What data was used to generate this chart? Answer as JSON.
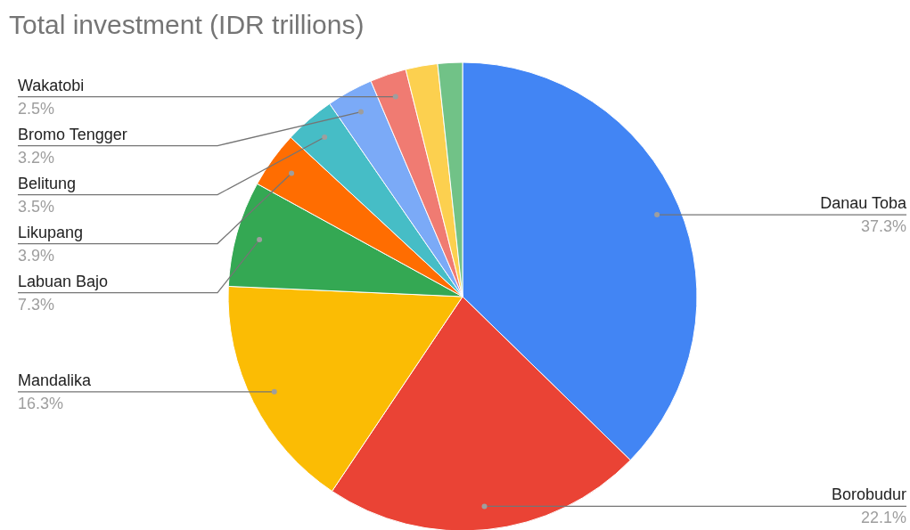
{
  "chart_data": {
    "type": "pie",
    "title": "Total investment (IDR trillions)",
    "categories": [
      "Danau Toba",
      "Borobudur",
      "Mandalika",
      "Labuan Bajo",
      "Likupang",
      "Belitung",
      "Bromo Tengger",
      "Wakatobi",
      null,
      null
    ],
    "values": [
      37.3,
      22.1,
      16.3,
      7.3,
      3.9,
      3.5,
      3.2,
      2.5,
      2.2,
      1.7
    ],
    "value_labels": [
      "37.3%",
      "22.1%",
      "16.3%",
      "7.3%",
      "3.9%",
      "3.5%",
      "3.2%",
      "2.5%",
      null,
      null
    ],
    "colors": [
      "#4285f4",
      "#ea4335",
      "#fbbc04",
      "#34a853",
      "#ff6d01",
      "#46bdc6",
      "#7baaf7",
      "#f07b72",
      "#fcd04f",
      "#71c287"
    ]
  }
}
